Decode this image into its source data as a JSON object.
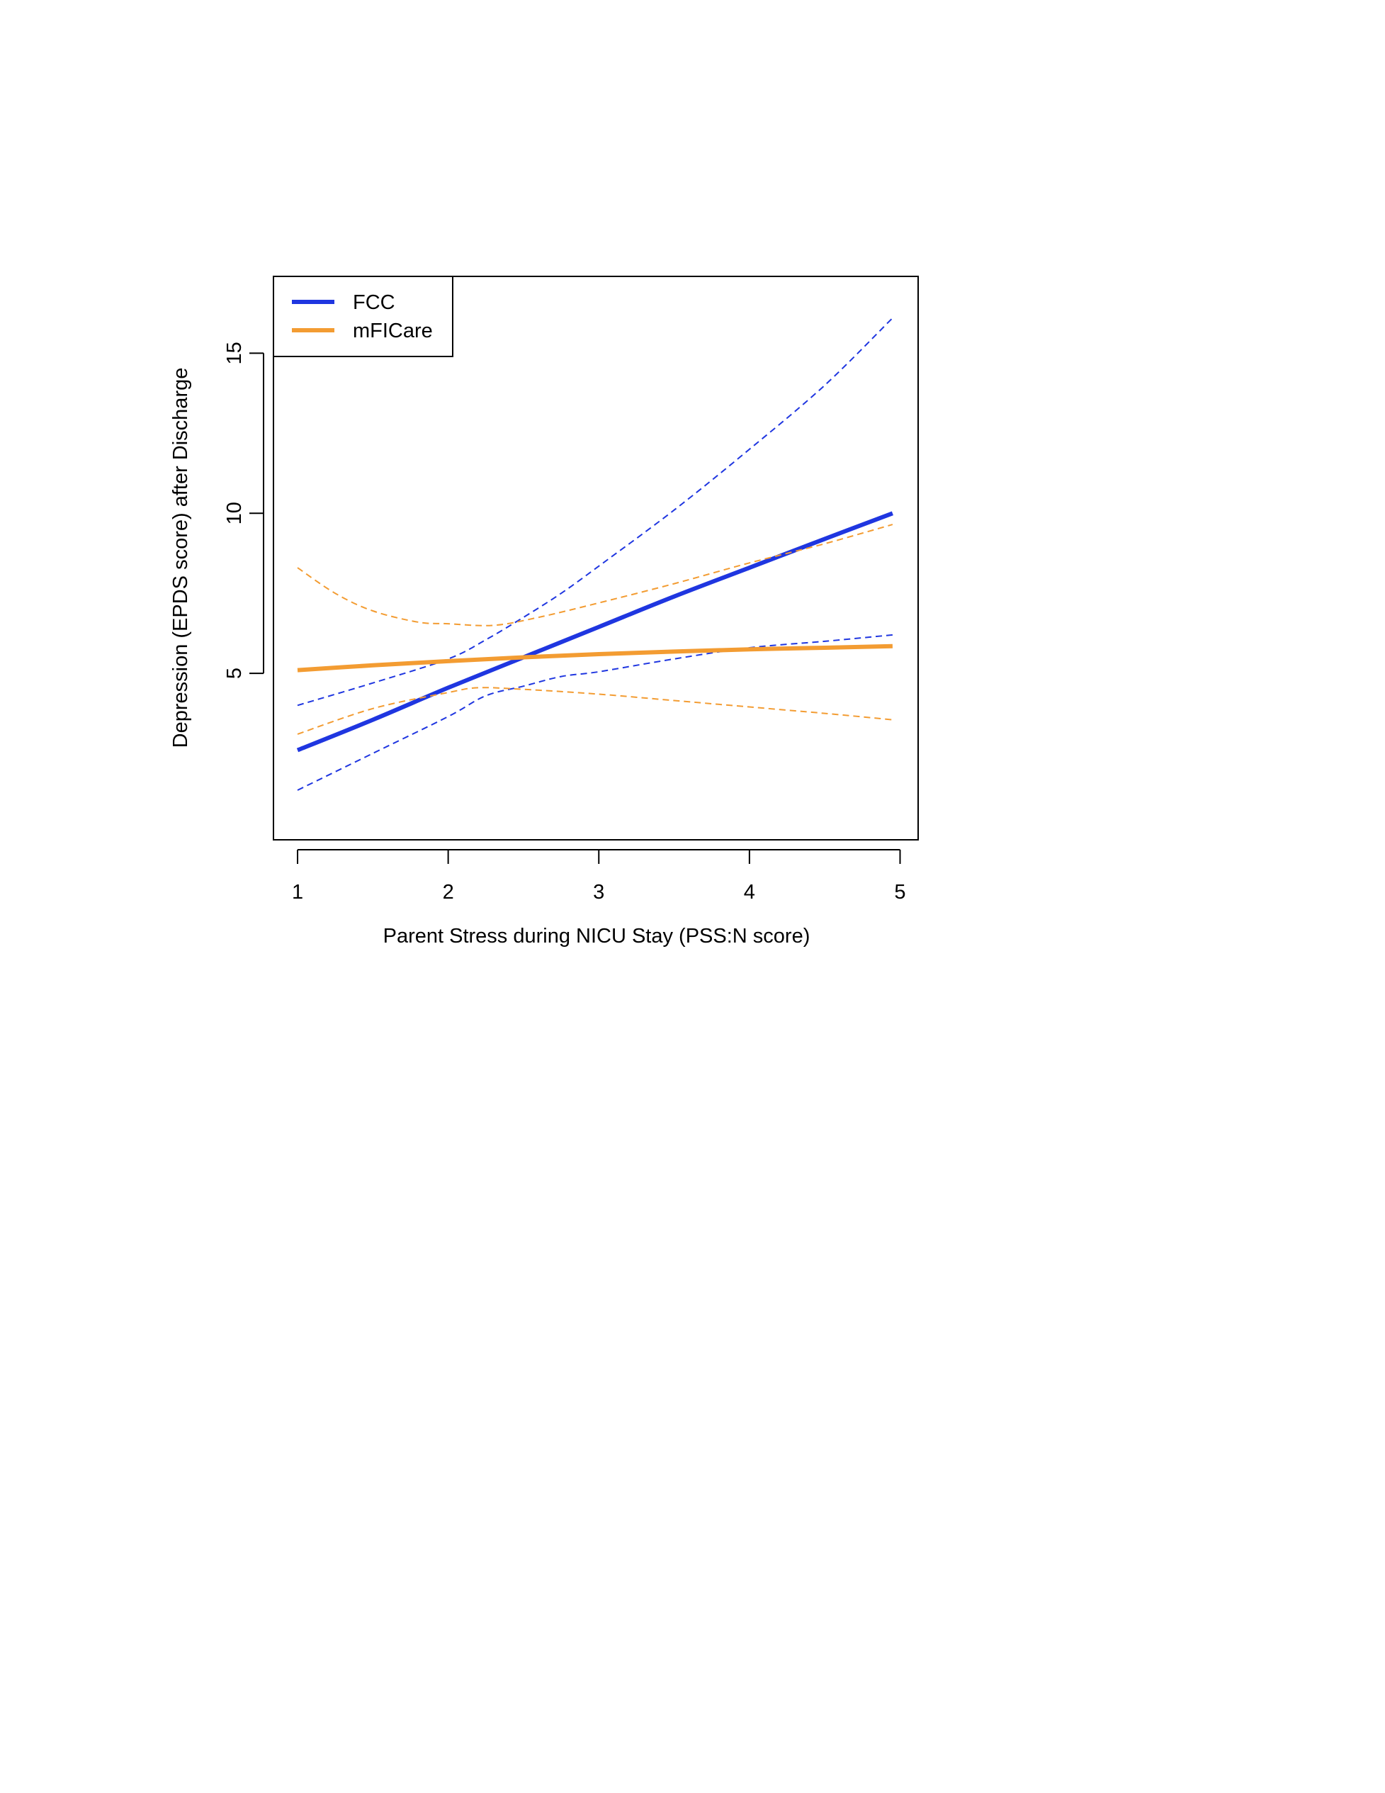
{
  "chart_data": {
    "type": "line",
    "title": "",
    "xlabel": "Parent Stress during NICU Stay (PSS:N score)",
    "ylabel": "Depression (EPDS score) after Discharge",
    "xlim": [
      0.84,
      5.12
    ],
    "ylim": [
      -0.2,
      17.4
    ],
    "xticks": [
      "1",
      "2",
      "3",
      "4",
      "5"
    ],
    "yticks": [
      "5",
      "10",
      "15"
    ],
    "grid": false,
    "legend_position": "top-left",
    "series": [
      {
        "name": "FCC",
        "color": "#1f36e0",
        "fit": {
          "x": [
            1.0,
            1.5,
            2.0,
            2.5,
            3.0,
            3.5,
            4.0,
            4.5,
            4.95
          ],
          "y": [
            2.6,
            3.55,
            4.55,
            5.5,
            6.45,
            7.4,
            8.3,
            9.2,
            10.0
          ]
        },
        "upper": {
          "x": [
            1.0,
            1.5,
            2.0,
            2.25,
            2.5,
            2.75,
            3.0,
            3.5,
            4.0,
            4.5,
            4.95
          ],
          "y": [
            4.0,
            4.7,
            5.45,
            6.05,
            6.75,
            7.5,
            8.35,
            10.1,
            12.0,
            14.0,
            16.1
          ]
        },
        "lower": {
          "x": [
            1.0,
            1.5,
            2.0,
            2.25,
            2.5,
            2.75,
            3.0,
            3.5,
            4.0,
            4.5,
            4.95
          ],
          "y": [
            1.35,
            2.5,
            3.65,
            4.3,
            4.6,
            4.9,
            5.05,
            5.45,
            5.8,
            6.0,
            6.2
          ]
        }
      },
      {
        "name": "mFICare",
        "color": "#f39c32",
        "fit": {
          "x": [
            1.0,
            1.5,
            2.0,
            2.5,
            3.0,
            3.5,
            4.0,
            4.5,
            4.95
          ],
          "y": [
            5.1,
            5.25,
            5.38,
            5.5,
            5.6,
            5.68,
            5.75,
            5.8,
            5.85
          ]
        },
        "upper": {
          "x": [
            1.0,
            1.25,
            1.5,
            1.8,
            2.0,
            2.3,
            2.6,
            3.0,
            3.5,
            4.0,
            4.5,
            4.95
          ],
          "y": [
            8.3,
            7.5,
            6.95,
            6.6,
            6.55,
            6.5,
            6.75,
            7.2,
            7.8,
            8.45,
            9.05,
            9.65
          ]
        },
        "lower": {
          "x": [
            1.0,
            1.5,
            2.0,
            2.2,
            2.5,
            3.0,
            3.5,
            4.0,
            4.5,
            4.95
          ],
          "y": [
            3.1,
            3.9,
            4.4,
            4.55,
            4.5,
            4.35,
            4.15,
            3.95,
            3.75,
            3.55
          ]
        }
      }
    ]
  }
}
